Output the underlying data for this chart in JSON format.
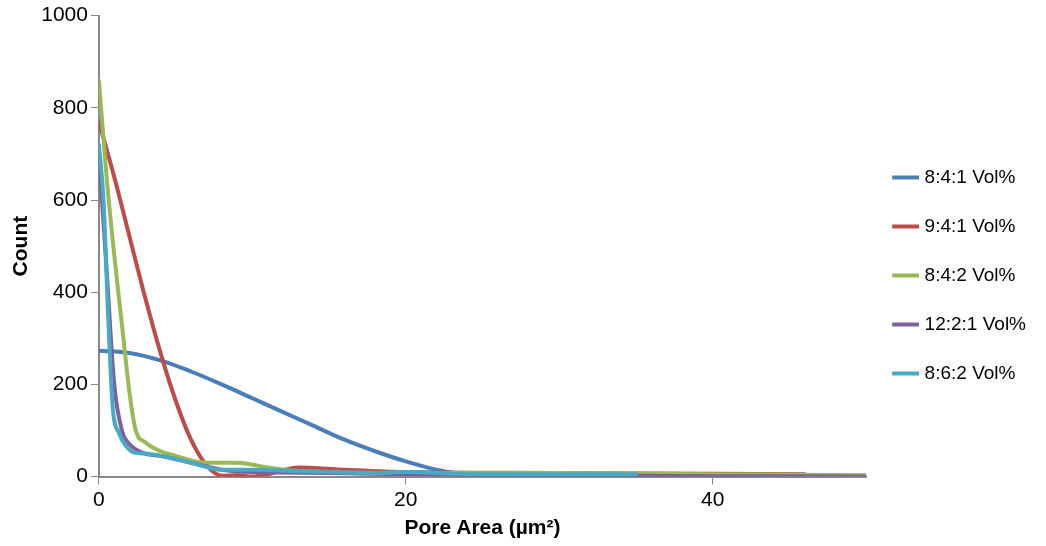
{
  "chart_data": {
    "type": "line",
    "xlabel": "Pore Area (µm²)",
    "ylabel": "Count",
    "xlim": [
      0,
      50
    ],
    "xticks": [
      0,
      20,
      40
    ],
    "ylim": [
      0,
      1000
    ],
    "yticks": [
      0,
      200,
      400,
      600,
      800,
      1000
    ],
    "grid": false,
    "legend": "right",
    "marker": "none",
    "line_style": "solid",
    "series": [
      {
        "name": "8:4:1 Vol%",
        "color": "#4a7ebb",
        "x": [
          0,
          2,
          4,
          6,
          8,
          10,
          12,
          14,
          16,
          18,
          20,
          22,
          24,
          30,
          40,
          46
        ],
        "values": [
          273,
          268,
          252,
          228,
          200,
          170,
          140,
          110,
          80,
          55,
          33,
          15,
          5,
          3,
          2,
          2
        ]
      },
      {
        "name": "9:4:1 Vol%",
        "color": "#be4b48",
        "x": [
          0,
          1,
          2,
          3,
          4,
          5,
          6,
          7,
          8,
          9,
          10,
          11,
          13,
          16,
          20,
          30,
          40,
          46
        ],
        "values": [
          770,
          650,
          520,
          390,
          270,
          165,
          80,
          25,
          2,
          3,
          0,
          5,
          20,
          15,
          10,
          8,
          6,
          5
        ]
      },
      {
        "name": "8:4:2 Vol%",
        "color": "#98b954",
        "x": [
          0,
          0.5,
          1,
          1.5,
          2,
          2.4,
          3,
          4,
          5,
          6,
          7,
          9,
          11,
          13,
          20,
          30,
          40,
          50
        ],
        "values": [
          860,
          650,
          480,
          330,
          180,
          100,
          75,
          55,
          45,
          35,
          30,
          30,
          20,
          12,
          8,
          8,
          5,
          3
        ]
      },
      {
        "name": "12:2:1 Vol%",
        "color": "#7d60a0",
        "x": [
          0,
          0.5,
          1,
          1.5,
          2,
          3,
          4,
          6,
          8,
          10,
          15,
          20,
          30,
          40,
          50
        ],
        "values": [
          700,
          450,
          200,
          100,
          70,
          50,
          45,
          30,
          15,
          10,
          8,
          5,
          3,
          1,
          0
        ]
      },
      {
        "name": "8:6:2 Vol%",
        "color": "#46aac5",
        "x": [
          0,
          0.3,
          0.6,
          0.9,
          1.3,
          1.8,
          2.3,
          3,
          4,
          6,
          8,
          10,
          13,
          18,
          20,
          25,
          30,
          35
        ],
        "values": [
          720,
          600,
          350,
          150,
          95,
          65,
          52,
          50,
          45,
          30,
          15,
          15,
          12,
          8,
          10,
          5,
          5,
          5
        ]
      }
    ]
  }
}
